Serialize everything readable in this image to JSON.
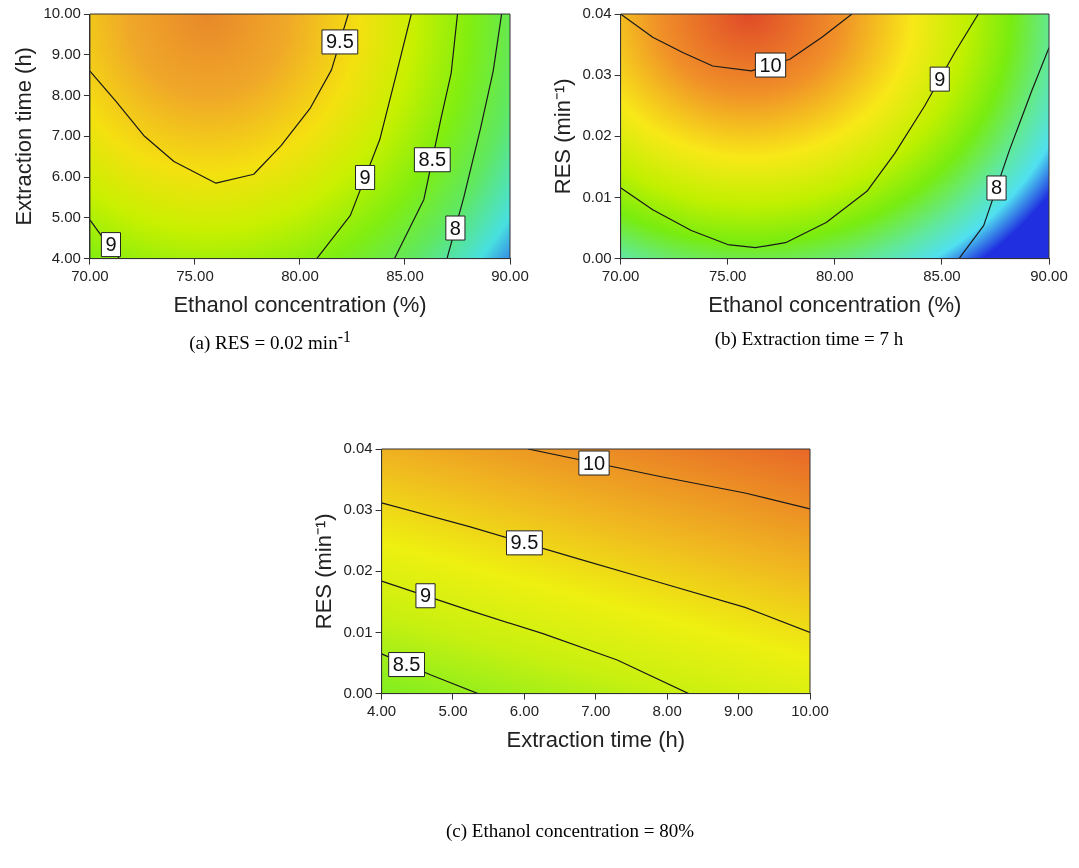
{
  "chart_data": [
    {
      "type": "line",
      "title": "(a) RES = 0.02 min$^{-1}$",
      "xlabel": "Ethanol concentration (%)",
      "ylabel": "Extraction time (h)",
      "xlim": [
        70,
        90
      ],
      "ylim": [
        4,
        10
      ],
      "xticks": [
        {
          "value": 70,
          "label": "70.00"
        },
        {
          "value": 75,
          "label": "75.00"
        },
        {
          "value": 80,
          "label": "80.00"
        },
        {
          "value": 85,
          "label": "85.00"
        },
        {
          "value": 90,
          "label": "90.00"
        }
      ],
      "yticks": [
        {
          "value": 4,
          "label": "4.00"
        },
        {
          "value": 5,
          "label": "5.00"
        },
        {
          "value": 6,
          "label": "6.00"
        },
        {
          "value": 7,
          "label": "7.00"
        },
        {
          "value": 8,
          "label": "8.00"
        },
        {
          "value": 9,
          "label": "9.00"
        },
        {
          "value": 10,
          "label": "10.00"
        }
      ],
      "grid": false,
      "legend": false,
      "marker": "none",
      "series": [
        {
          "name": "9.5",
          "color": "#1a1a1a",
          "x": [
            70,
            71.25,
            72.6,
            74,
            76,
            77.8,
            79.1,
            80.5,
            81.5,
            82.3
          ],
          "values": [
            8.6,
            7.85,
            7,
            6.38,
            5.85,
            6.07,
            6.77,
            7.7,
            8.63,
            10
          ]
        },
        {
          "name": "9",
          "color": "#1a1a1a",
          "x": [
            70,
            70.6,
            71.4
          ],
          "values": [
            4.95,
            4.52,
            4
          ]
        },
        {
          "name": "9",
          "color": "#1a1a1a",
          "x": [
            80.8,
            82.4,
            83.8,
            84.6,
            85.3
          ],
          "values": [
            4,
            5.06,
            6.92,
            8.55,
            10
          ]
        },
        {
          "name": "8.5",
          "color": "#1a1a1a",
          "x": [
            84.5,
            85.9,
            86.7,
            87.2,
            87.5
          ],
          "values": [
            4,
            5.45,
            7.4,
            8.55,
            10
          ]
        },
        {
          "name": "8",
          "color": "#1a1a1a",
          "x": [
            87,
            87.8,
            88.6,
            89.2,
            89.6
          ],
          "values": [
            4,
            5.5,
            7.2,
            8.6,
            10
          ]
        }
      ]
    },
    {
      "type": "line",
      "title": "(b) Extraction time = 7 h",
      "xlabel": "Ethanol concentration (%)",
      "ylabel": "RES (min⁻¹)",
      "xlim": [
        70,
        90
      ],
      "ylim": [
        0,
        0.04
      ],
      "xticks": [
        {
          "value": 70,
          "label": "70.00"
        },
        {
          "value": 75,
          "label": "75.00"
        },
        {
          "value": 80,
          "label": "80.00"
        },
        {
          "value": 85,
          "label": "85.00"
        },
        {
          "value": 90,
          "label": "90.00"
        }
      ],
      "yticks": [
        {
          "value": 0,
          "label": "0.00"
        },
        0.01,
        0.02,
        0.03,
        0.04
      ],
      "grid": false,
      "legend": false,
      "marker": "none",
      "series": [
        {
          "name": "10",
          "color": "#1a1a1a",
          "x": [
            70,
            71.5,
            72.9,
            74.3,
            76.1,
            77.9,
            79.4,
            80.8
          ],
          "values": [
            0.04,
            0.0362,
            0.0337,
            0.0315,
            0.0307,
            0.0326,
            0.0362,
            0.04
          ]
        },
        {
          "name": "9",
          "color": "#1a1a1a",
          "x": [
            70,
            71.5,
            73.3,
            75,
            76.3,
            77.7,
            79.6,
            81.5,
            82.8,
            84.2,
            85.6,
            86.7
          ],
          "values": [
            0.0116,
            0.008,
            0.0046,
            0.0023,
            0.0018,
            0.0026,
            0.0059,
            0.011,
            0.0172,
            0.025,
            0.0337,
            0.04
          ]
        },
        {
          "name": "8",
          "color": "#1a1a1a",
          "x": [
            85.8,
            86.95,
            88.15,
            89.2,
            90
          ],
          "values": [
            0,
            0.0054,
            0.0177,
            0.0275,
            0.0345
          ]
        }
      ]
    },
    {
      "type": "line",
      "title": "(c) Ethanol concentration = 80%",
      "xlabel": "Extraction time (h)",
      "ylabel": "RES (min⁻¹)",
      "xlim": [
        4,
        10
      ],
      "ylim": [
        0,
        0.04
      ],
      "xticks": [
        {
          "value": 4,
          "label": "4.00"
        },
        {
          "value": 5,
          "label": "5.00"
        },
        {
          "value": 6,
          "label": "6.00"
        },
        {
          "value": 7,
          "label": "7.00"
        },
        {
          "value": 8,
          "label": "8.00"
        },
        {
          "value": 9,
          "label": "9.00"
        },
        {
          "value": 10,
          "label": "10.00"
        }
      ],
      "yticks": [
        {
          "value": 0,
          "label": "0.00"
        },
        0.01,
        0.02,
        0.03,
        0.04
      ],
      "grid": false,
      "legend": false,
      "marker": "none",
      "series": [
        {
          "name": "10",
          "color": "#1a1a1a",
          "x": [
            6.05,
            7.9,
            9.09,
            10
          ],
          "values": [
            0.04,
            0.0355,
            0.0328,
            0.0302
          ]
        },
        {
          "name": "9.5",
          "color": "#1a1a1a",
          "x": [
            4,
            5.23,
            6.77,
            7.8,
            9.09,
            10
          ],
          "values": [
            0.0312,
            0.0273,
            0.022,
            0.0185,
            0.0141,
            0.01
          ]
        },
        {
          "name": "9",
          "color": "#1a1a1a",
          "x": [
            4,
            5.23,
            6.26,
            7.3,
            8.3
          ],
          "values": [
            0.0184,
            0.0136,
            0.0098,
            0.0055,
            0
          ]
        },
        {
          "name": "8.5",
          "color": "#1a1a1a",
          "x": [
            4,
            4.7,
            5.35
          ],
          "values": [
            0.0065,
            0.003,
            0
          ]
        }
      ]
    }
  ]
}
